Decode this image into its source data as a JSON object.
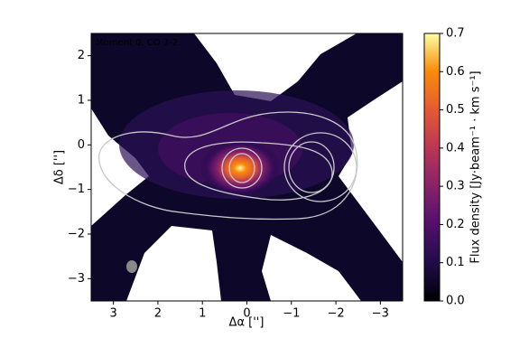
{
  "chart_data": {
    "type": "image",
    "annotation": "Moment 0, CO 3-2",
    "xlabel": "Δα ['']",
    "ylabel": "Δδ ['']",
    "xlim": [
      3.5,
      -3.5
    ],
    "xticks": [
      3,
      2,
      1,
      0,
      {
        "value": -1,
        "label": "−1"
      },
      {
        "value": -2,
        "label": "−2"
      },
      {
        "value": -3,
        "label": "−3"
      }
    ],
    "ylim": [
      -3.5,
      2.5
    ],
    "yticks": [
      {
        "value": -3,
        "label": "−3"
      },
      {
        "value": -2,
        "label": "−2"
      },
      {
        "value": -1,
        "label": "−1"
      },
      0,
      1,
      2
    ],
    "colorbar": {
      "label": "Flux density [Jy·beam⁻¹ · km s⁻¹]",
      "colormap": "inferno",
      "lim": [
        0,
        0.7
      ],
      "ticks": [
        {
          "value": 0,
          "label": "0.0"
        },
        0.1,
        0.2,
        0.3,
        0.4,
        0.5,
        0.6,
        0.7
      ]
    }
  }
}
